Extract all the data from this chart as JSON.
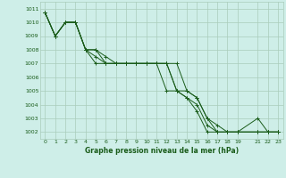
{
  "title": "Graphe pression niveau de la mer (hPa)",
  "bg_color": "#ceeee8",
  "grid_color": "#aaccbb",
  "line_color": "#1a5c1a",
  "ylim": [
    1001.5,
    1011.5
  ],
  "xlim": [
    -0.5,
    23.5
  ],
  "yticks": [
    1002,
    1003,
    1004,
    1005,
    1006,
    1007,
    1008,
    1009,
    1010,
    1011
  ],
  "xticks": [
    0,
    1,
    2,
    3,
    4,
    5,
    6,
    7,
    8,
    9,
    10,
    11,
    12,
    13,
    14,
    15,
    16,
    17,
    18,
    19,
    21,
    22,
    23
  ],
  "xtick_labels": [
    "0",
    "1",
    "2",
    "3",
    "4",
    "5",
    "6",
    "7",
    "8",
    "9",
    "10",
    "11",
    "12",
    "13",
    "14",
    "15",
    "16",
    "17",
    "18",
    "19",
    "21",
    "22",
    "23"
  ],
  "series": [
    {
      "x": [
        0,
        1,
        2,
        3,
        4,
        5,
        6,
        7,
        8,
        9,
        10,
        11,
        12,
        13,
        14,
        15,
        16,
        17,
        18,
        19,
        21,
        22,
        23
      ],
      "y": [
        1010.7,
        1009.0,
        1010.0,
        1010.0,
        1008.0,
        1007.0,
        1007.0,
        1007.0,
        1007.0,
        1007.0,
        1007.0,
        1007.0,
        1007.0,
        1005.0,
        1005.0,
        1004.5,
        1003.0,
        1002.0,
        1002.0,
        1002.0,
        1002.0,
        1002.0,
        1002.0
      ]
    },
    {
      "x": [
        0,
        1,
        2,
        3,
        4,
        5,
        6,
        7,
        8,
        9,
        10,
        11,
        12,
        13,
        14,
        15,
        16,
        17,
        18,
        19,
        21,
        22,
        23
      ],
      "y": [
        1010.7,
        1009.0,
        1010.0,
        1010.0,
        1008.0,
        1008.0,
        1007.5,
        1007.0,
        1007.0,
        1007.0,
        1007.0,
        1007.0,
        1007.0,
        1007.0,
        1005.0,
        1004.5,
        1003.0,
        1002.5,
        1002.0,
        1002.0,
        1003.0,
        1002.0,
        1002.0
      ]
    },
    {
      "x": [
        0,
        1,
        2,
        3,
        4,
        5,
        6,
        7,
        8,
        9,
        10,
        11,
        12,
        13,
        14,
        15,
        16,
        17,
        18,
        19,
        21,
        22,
        23
      ],
      "y": [
        1010.7,
        1009.0,
        1010.0,
        1010.0,
        1008.0,
        1007.5,
        1007.0,
        1007.0,
        1007.0,
        1007.0,
        1007.0,
        1007.0,
        1005.0,
        1005.0,
        1004.5,
        1003.5,
        1002.0,
        1002.0,
        1002.0,
        1002.0,
        1002.0,
        1002.0,
        1002.0
      ]
    },
    {
      "x": [
        0,
        1,
        2,
        3,
        4,
        5,
        6,
        7,
        8,
        9,
        10,
        11,
        12,
        13,
        14,
        15,
        16,
        17,
        18,
        19,
        21,
        22,
        23
      ],
      "y": [
        1010.7,
        1009.0,
        1010.0,
        1010.0,
        1008.0,
        1008.0,
        1007.0,
        1007.0,
        1007.0,
        1007.0,
        1007.0,
        1007.0,
        1007.0,
        1005.0,
        1004.5,
        1004.0,
        1002.5,
        1002.0,
        1002.0,
        1002.0,
        1002.0,
        1002.0,
        1002.0
      ]
    }
  ]
}
